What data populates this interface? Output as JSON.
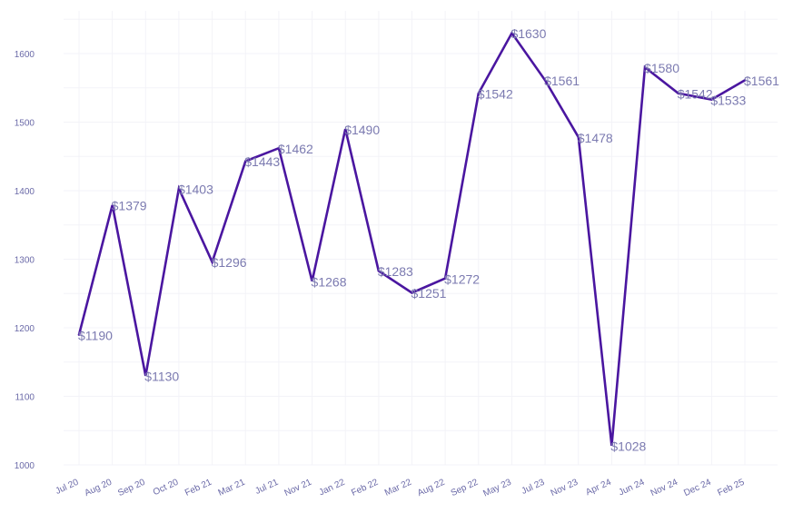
{
  "chart_data": {
    "type": "line",
    "title": "",
    "xlabel": "",
    "ylabel": "",
    "ylim": [
      1000,
      1650
    ],
    "yticks": [
      1000,
      1100,
      1200,
      1300,
      1400,
      1500,
      1600
    ],
    "grid": true,
    "line_color": "#4a16a0",
    "label_prefix": "$",
    "x": [
      "Jul 20",
      "Aug 20",
      "Sep 20",
      "Oct 20",
      "Feb 21",
      "Mar 21",
      "Jul 21",
      "Nov 21",
      "Jan 22",
      "Feb 22",
      "Mar 22",
      "Aug 22",
      "Sep 22",
      "May 23",
      "Jul 23",
      "Nov 23",
      "Apr 24",
      "Jun 24",
      "Nov 24",
      "Dec 24",
      "Feb 25"
    ],
    "series": [
      {
        "values": [
          1190,
          1379,
          1130,
          1403,
          1296,
          1443,
          1462,
          1268,
          1490,
          1283,
          1251,
          1272,
          1542,
          1630,
          1561,
          1478,
          1028,
          1580,
          1542,
          1533,
          1561
        ]
      }
    ]
  }
}
